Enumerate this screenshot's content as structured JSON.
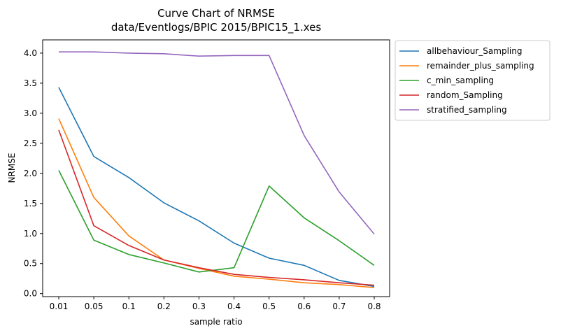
{
  "chart_data": {
    "type": "line",
    "title": "Curve Chart of NRMSE",
    "subtitle": "data/Eventlogs/BPIC 2015/BPIC15_1.xes",
    "xlabel": "sample ratio",
    "ylabel": "NRMSE",
    "categories": [
      "0.01",
      "0.05",
      "0.1",
      "0.2",
      "0.3",
      "0.4",
      "0.5",
      "0.6",
      "0.7",
      "0.8"
    ],
    "ylim": [
      -0.05,
      4.22
    ],
    "yticks": [
      "0.0",
      "0.5",
      "1.0",
      "1.5",
      "2.0",
      "2.5",
      "3.0",
      "3.5",
      "4.0"
    ],
    "grid": false,
    "legend_position": "outside-upper-right",
    "series": [
      {
        "name": "allbehaviour_Sampling",
        "color": "#1f77b4",
        "values": [
          3.43,
          2.28,
          1.93,
          1.51,
          1.21,
          0.84,
          0.59,
          0.47,
          0.22,
          0.12
        ]
      },
      {
        "name": "remainder_plus_sampling",
        "color": "#ff7f0e",
        "values": [
          2.91,
          1.6,
          0.96,
          0.56,
          0.42,
          0.29,
          0.24,
          0.18,
          0.15,
          0.1
        ]
      },
      {
        "name": "c_min_sampling",
        "color": "#2ca02c",
        "values": [
          2.05,
          0.89,
          0.65,
          0.51,
          0.36,
          0.43,
          1.79,
          1.26,
          0.88,
          0.47
        ]
      },
      {
        "name": "random_Sampling",
        "color": "#d62728",
        "values": [
          2.72,
          1.13,
          0.8,
          0.56,
          0.43,
          0.32,
          0.27,
          0.23,
          0.18,
          0.14
        ]
      },
      {
        "name": "stratified_sampling",
        "color": "#9467bd",
        "values": [
          4.02,
          4.02,
          4.0,
          3.99,
          3.95,
          3.96,
          3.96,
          2.63,
          1.69,
          0.99
        ]
      }
    ]
  }
}
